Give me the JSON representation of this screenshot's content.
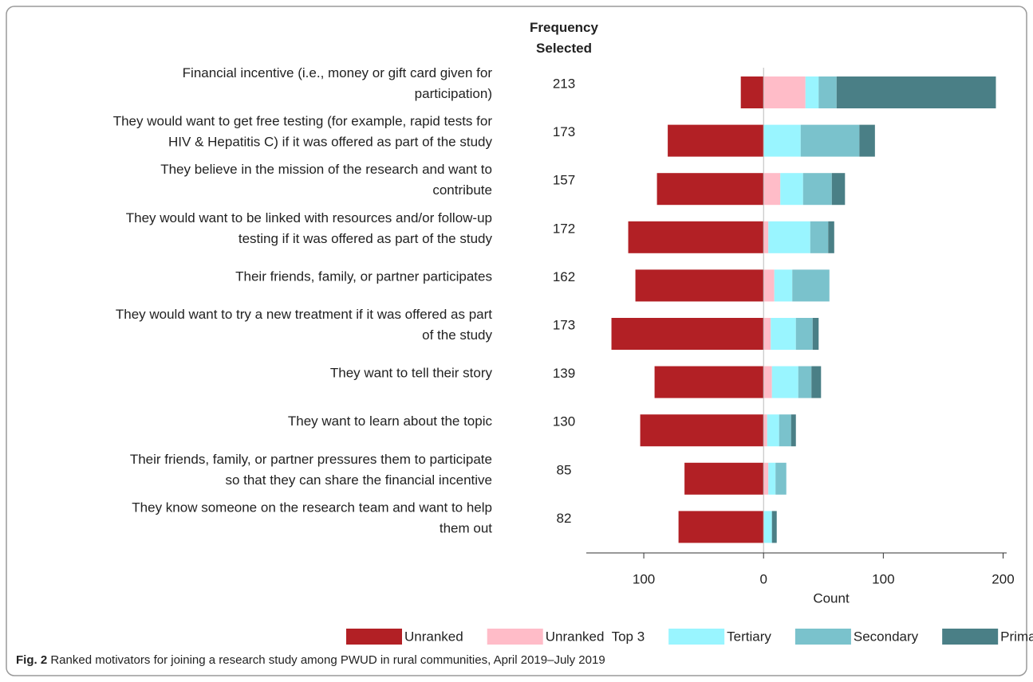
{
  "chart_data": {
    "type": "diverging-stacked-bar",
    "frequency_header": "Frequency\nSelected",
    "categories": [
      "Financial incentive (i.e., money or gift card given for\nparticipation)",
      "They would want to get free testing (for example, rapid tests for\nHIV & Hepatitis C) if it was offered as part of the study",
      "They believe in the mission of the research and want to\ncontribute",
      "They would want to be linked with resources and/or follow-up\ntesting if it was offered as part of the study",
      "Their friends, family, or partner participates",
      "They would want to try a new treatment if it was offered as part\nof the study",
      "They want to tell their story",
      "They want to learn about the topic",
      "Their friends, family, or partner pressures them to participate\nso that they can share the financial incentive",
      "They know someone on the research team and want to help\nthem out"
    ],
    "frequency": [
      213,
      173,
      157,
      172,
      162,
      173,
      139,
      130,
      85,
      82
    ],
    "series": [
      {
        "name": "Unranked",
        "color": "#b22025",
        "values": [
          -19,
          -80,
          -89,
          -113,
          -107,
          -127,
          -91,
          -103,
          -66,
          -71
        ]
      },
      {
        "name": "Unranked  Top 3",
        "color": "#ffbcc8",
        "values": [
          35,
          0,
          14,
          4,
          9,
          6,
          7,
          3,
          4,
          0
        ]
      },
      {
        "name": "Tertiary",
        "color": "#99f5ff",
        "values": [
          11,
          31,
          19,
          35,
          15,
          21,
          22,
          10,
          6,
          7
        ]
      },
      {
        "name": "Secondary",
        "color": "#7ac2cc",
        "values": [
          15,
          49,
          24,
          15,
          31,
          14,
          11,
          10,
          9,
          0
        ]
      },
      {
        "name": "Primary",
        "color": "#4a7f86",
        "values": [
          133,
          13,
          11,
          5,
          0,
          5,
          8,
          4,
          0,
          4
        ]
      }
    ],
    "xlabel": "Count",
    "xlim": [
      -148,
      203
    ],
    "xticks": [
      {
        "value": -100,
        "label": "100"
      },
      0,
      100,
      200
    ],
    "caption_label": "Fig. 2",
    "caption": "Ranked motivators for joining a research study among PWUD in rural communities, April 2019–July 2019"
  }
}
